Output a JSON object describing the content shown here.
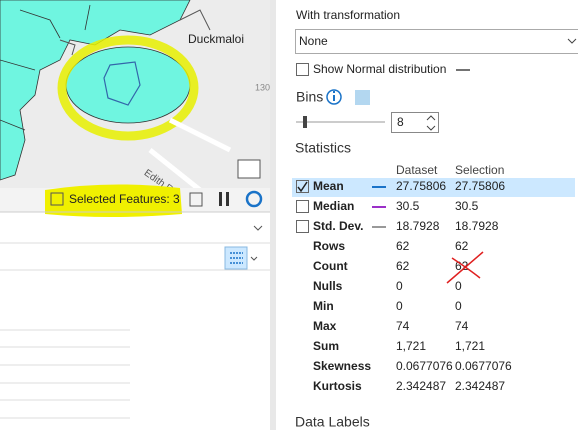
{
  "map": {
    "place_label": "Duckmaloi",
    "road_label": "Edith Rd",
    "contour_label": "130"
  },
  "status_bar": {
    "selected_features": "Selected Features: 3"
  },
  "panel": {
    "transformation_label": "With transformation",
    "transformation_value": "None",
    "normal_distribution": "Show Normal distribution",
    "bins_label": "Bins",
    "bins_value": "8",
    "statistics_title": "Statistics",
    "column_dataset": "Dataset",
    "column_selection": "Selection",
    "rows": [
      {
        "label": "Mean",
        "dataset": "27.75806",
        "selection": "27.75806"
      },
      {
        "label": "Median",
        "dataset": "30.5",
        "selection": "30.5"
      },
      {
        "label": "Std. Dev.",
        "dataset": "18.7928",
        "selection": "18.7928"
      },
      {
        "label": "Rows",
        "dataset": "62",
        "selection": "62"
      },
      {
        "label": "Count",
        "dataset": "62",
        "selection": "62"
      },
      {
        "label": "Nulls",
        "dataset": "0",
        "selection": "0"
      },
      {
        "label": "Min",
        "dataset": "0",
        "selection": "0"
      },
      {
        "label": "Max",
        "dataset": "74",
        "selection": "74"
      },
      {
        "label": "Sum",
        "dataset": "1,721",
        "selection": "1,721"
      },
      {
        "label": "Skewness",
        "dataset": "0.0677076",
        "selection": "0.0677076"
      },
      {
        "label": "Kurtosis",
        "dataset": "2.342487",
        "selection": "2.342487"
      }
    ],
    "data_labels_title": "Data Labels"
  }
}
